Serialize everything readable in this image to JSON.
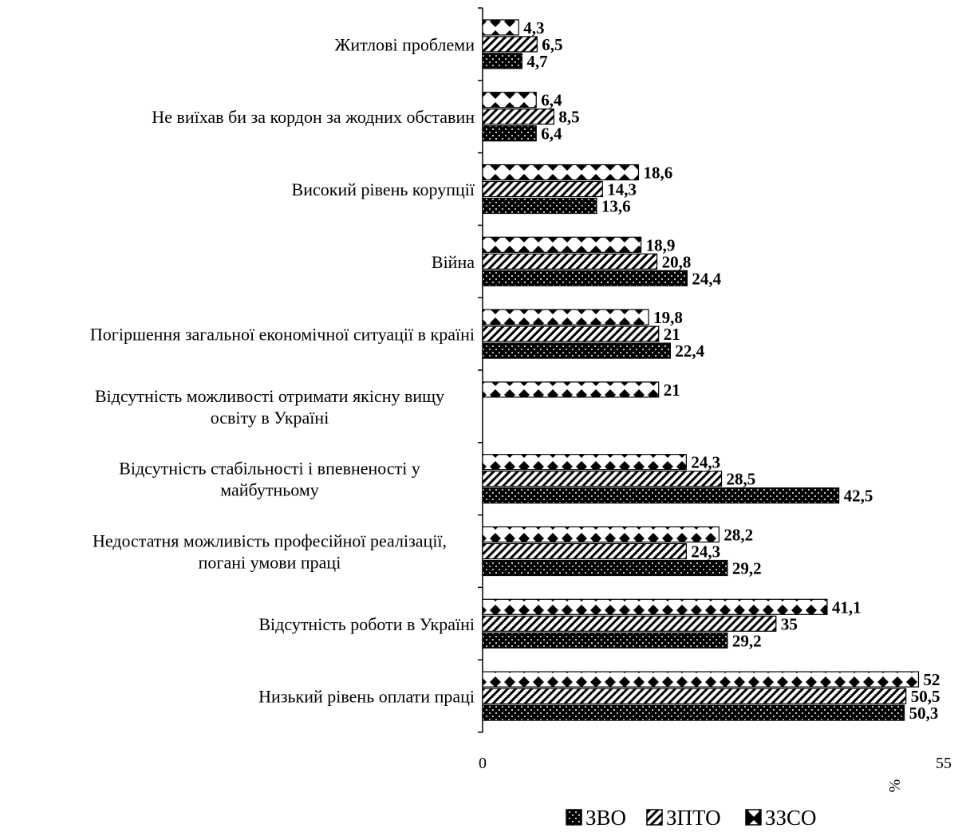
{
  "chart_data": {
    "type": "bar",
    "orientation": "horizontal",
    "categories": [
      [
        "Житлові проблеми"
      ],
      [
        "Не виїхав би за кордон за жодних обставин"
      ],
      [
        "Високий рівень корупції"
      ],
      [
        "Війна"
      ],
      [
        "Погіршення загальної економічної ситуації в країні"
      ],
      [
        "Відсутність можливості отримати якісну вищу",
        "освіту в Україні"
      ],
      [
        "Відсутність стабільності і впевненості у",
        "майбутньому"
      ],
      [
        "Недостатня можливість професійної реалізації,",
        "погані умови праці"
      ],
      [
        "Відсутність роботи в Україні"
      ],
      [
        "Низький рівень оплати праці"
      ]
    ],
    "series": [
      {
        "name": "ЗЗСО",
        "pattern": "diamonds",
        "values": [
          4.3,
          6.4,
          18.6,
          18.9,
          19.8,
          21,
          24.3,
          28.2,
          41.1,
          52
        ],
        "labels": [
          "4,3",
          "6,4",
          "18,6",
          "18,9",
          "19,8",
          "21",
          "24,3",
          "28,2",
          "41,1",
          "52"
        ]
      },
      {
        "name": "ЗПТО",
        "pattern": "diagonal-stripes",
        "values": [
          6.5,
          8.5,
          14.3,
          20.8,
          21,
          null,
          28.5,
          24.3,
          35,
          50.5
        ],
        "labels": [
          "6,5",
          "8,5",
          "14,3",
          "20,8",
          "21",
          "",
          "28,5",
          "24,3",
          "35",
          "50,5"
        ]
      },
      {
        "name": "ЗВО",
        "pattern": "dots",
        "values": [
          4.7,
          6.4,
          13.6,
          24.4,
          22.4,
          null,
          42.5,
          29.2,
          29.2,
          50.3
        ],
        "labels": [
          "4,7",
          "6,4",
          "13,6",
          "24,4",
          "22,4",
          "",
          "42,5",
          "29,2",
          "29,2",
          "50,3"
        ]
      }
    ],
    "xlim": [
      0,
      55
    ],
    "x_ticks": [
      "0",
      "55"
    ],
    "xlabel": "%",
    "legend": {
      "position": "bottom",
      "items": [
        "ЗВО",
        "ЗПТО",
        "ЗЗСО"
      ]
    },
    "grid": false
  }
}
